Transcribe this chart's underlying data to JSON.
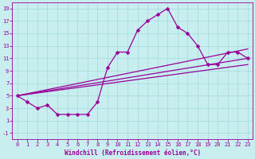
{
  "title": "",
  "xlabel": "Windchill (Refroidissement éolien,°C)",
  "background_color": "#c8eef0",
  "grid_color": "#aadddd",
  "line_color": "#990099",
  "xlim": [
    -0.5,
    23.5
  ],
  "ylim": [
    -2,
    20
  ],
  "xticks": [
    0,
    1,
    2,
    3,
    4,
    5,
    6,
    7,
    8,
    9,
    10,
    11,
    12,
    13,
    14,
    15,
    16,
    17,
    18,
    19,
    20,
    21,
    22,
    23
  ],
  "yticks": [
    -1,
    1,
    3,
    5,
    7,
    9,
    11,
    13,
    15,
    17,
    19
  ],
  "curve1_x": [
    0,
    1,
    2,
    3,
    4,
    5,
    6,
    7,
    8,
    9,
    10,
    11,
    12,
    13,
    14,
    15,
    16,
    17,
    18,
    19,
    20,
    21,
    22,
    23
  ],
  "curve1_y": [
    5,
    4,
    3,
    3.5,
    2,
    2,
    2,
    2,
    4,
    9.5,
    12,
    12,
    15.5,
    17,
    18,
    19,
    16,
    15,
    13,
    10,
    10,
    12,
    12,
    11
  ],
  "line1_x": [
    0,
    23
  ],
  "line1_y": [
    5,
    12.5
  ],
  "line2_x": [
    0,
    23
  ],
  "line2_y": [
    5,
    11.0
  ],
  "line3_x": [
    0,
    23
  ],
  "line3_y": [
    5,
    10.0
  ],
  "marker": "D",
  "markersize": 2.5,
  "linewidth": 0.9,
  "xlabel_fontsize": 5.5,
  "tick_fontsize": 5.0
}
